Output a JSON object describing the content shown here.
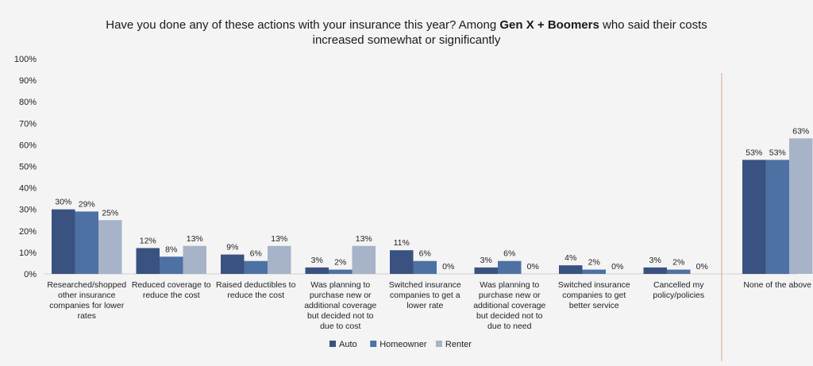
{
  "chart_data": {
    "type": "bar",
    "title": {
      "prefix": "Have you done any of these actions with your insurance this year? Among ",
      "bold": "Gen X + Boomers",
      "suffix": " who said their costs",
      "line2": "increased somewhat or significantly"
    },
    "ylim": [
      0,
      100
    ],
    "yticks": [
      "0%",
      "10%",
      "20%",
      "30%",
      "40%",
      "50%",
      "60%",
      "70%",
      "80%",
      "90%",
      "100%"
    ],
    "grid": false,
    "legend_position": "bottom",
    "categories": [
      [
        "Researched/shopped",
        "other insurance",
        "companies for lower",
        "rates"
      ],
      [
        "Reduced coverage to",
        "reduce the cost"
      ],
      [
        "Raised deductibles to",
        "reduce the cost"
      ],
      [
        "Was planning to",
        "purchase new or",
        "additional coverage",
        "but decided not to",
        "due to cost"
      ],
      [
        "Switched insurance",
        "companies to get a",
        "lower rate"
      ],
      [
        "Was planning to",
        "purchase new or",
        "additional coverage",
        "but decided not to",
        "due to need"
      ],
      [
        "Switched insurance",
        "companies to get",
        "better service"
      ],
      [
        "Cancelled my",
        "policy/policies"
      ],
      [
        "None of the above"
      ]
    ],
    "series": [
      {
        "name": "Auto",
        "color": "#3a5280",
        "values": [
          30,
          12,
          9,
          3,
          11,
          3,
          4,
          3,
          53
        ]
      },
      {
        "name": "Homeowner",
        "color": "#4e71a3",
        "values": [
          29,
          8,
          6,
          2,
          6,
          6,
          2,
          2,
          53
        ]
      },
      {
        "name": "Renter",
        "color": "#a7b3c8",
        "values": [
          25,
          13,
          13,
          13,
          0,
          0,
          0,
          0,
          63
        ]
      }
    ],
    "value_suffix": "%",
    "separator_before_category": 8,
    "separator_color": "#d9a58a"
  }
}
